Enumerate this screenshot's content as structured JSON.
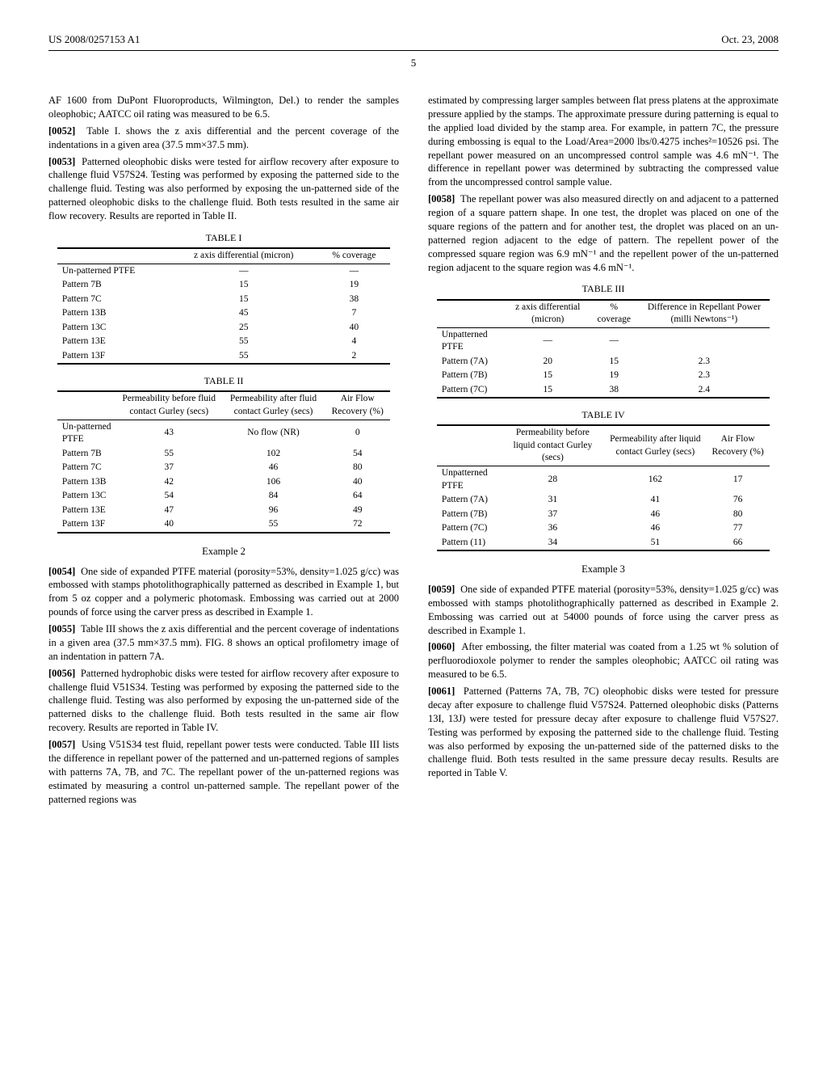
{
  "header": {
    "left": "US 2008/0257153 A1",
    "right": "Oct. 23, 2008"
  },
  "pagenum": "5",
  "p51_tail": "AF 1600 from DuPont Fluoroproducts, Wilmington, Del.) to render the samples oleophobic; AATCC oil rating was measured to be 6.5.",
  "p52": "Table I. shows the z axis differential and the percent coverage of the indentations in a given area (37.5 mm×37.5 mm).",
  "p53": "Patterned oleophobic disks were tested for airflow recovery after exposure to challenge fluid V57S24. Testing was performed by exposing the patterned side to the challenge fluid. Testing was also performed by exposing the un-patterned side of the patterned oleophobic disks to the challenge fluid. Both tests resulted in the same air flow recovery. Results are reported in Table II.",
  "t1": {
    "cap": "TABLE I",
    "cols": [
      "",
      "z axis differential (micron)",
      "% coverage"
    ],
    "rows": [
      [
        "Un-patterned PTFE",
        "—",
        "—"
      ],
      [
        "Pattern 7B",
        "15",
        "19"
      ],
      [
        "Pattern 7C",
        "15",
        "38"
      ],
      [
        "Pattern 13B",
        "45",
        "7"
      ],
      [
        "Pattern 13C",
        "25",
        "40"
      ],
      [
        "Pattern 13E",
        "55",
        "4"
      ],
      [
        "Pattern 13F",
        "55",
        "2"
      ]
    ]
  },
  "t2": {
    "cap": "TABLE II",
    "cols": [
      "",
      "Permeability before fluid contact Gurley (secs)",
      "Permeability after fluid contact Gurley (secs)",
      "Air Flow Recovery (%)"
    ],
    "rows": [
      [
        "Un-patterned PTFE",
        "43",
        "No flow (NR)",
        "0"
      ],
      [
        "Pattern 7B",
        "55",
        "102",
        "54"
      ],
      [
        "Pattern 7C",
        "37",
        "46",
        "80"
      ],
      [
        "Pattern 13B",
        "42",
        "106",
        "40"
      ],
      [
        "Pattern 13C",
        "54",
        "84",
        "64"
      ],
      [
        "Pattern 13E",
        "47",
        "96",
        "49"
      ],
      [
        "Pattern 13F",
        "40",
        "55",
        "72"
      ]
    ]
  },
  "ex2": "Example 2",
  "p54": "One side of expanded PTFE material (porosity=53%, density=1.025 g/cc) was embossed with stamps photolithographically patterned as described in Example 1, but from 5 oz copper and a polymeric photomask. Embossing was carried out at 2000 pounds of force using the carver press as described in Example 1.",
  "p55": "Table III shows the z axis differential and the percent coverage of indentations in a given area (37.5 mm×37.5 mm). FIG. 8 shows an optical profilometry image of an indentation in pattern 7A.",
  "p56": "Patterned hydrophobic disks were tested for airflow recovery after exposure to challenge fluid V51S34. Testing was performed by exposing the patterned side to the challenge fluid. Testing was also performed by exposing the un-patterned side of the patterned disks to the challenge fluid. Both tests resulted in the same air flow recovery. Results are reported in Table IV.",
  "p57a": "Using V51S34 test fluid, repellant power tests were conducted. Table III lists the difference in repellant power of the patterned and un-patterned regions of samples with patterns 7A, 7B, and 7C. The repellant power of the un-patterned regions was estimated by measuring a control un-patterned sample. The repellant power of the patterned regions was",
  "p57b": "estimated by compressing larger samples between flat press platens at the approximate pressure applied by the stamps. The approximate pressure during patterning is equal to the applied load divided by the stamp area. For example, in pattern 7C, the pressure during embossing is equal to the Load/Area=2000 lbs/0.4275 inches²=10526 psi. The repellant power measured on an uncompressed control sample was 4.6 mN⁻¹. The difference in repellant power was determined by subtracting the compressed value from the uncompressed control sample value.",
  "p58": "The repellant power was also measured directly on and adjacent to a patterned region of a square pattern shape. In one test, the droplet was placed on one of the square regions of the pattern and for another test, the droplet was placed on an un-patterned region adjacent to the edge of pattern. The repellent power of the compressed square region was 6.9 mN⁻¹ and the repellent power of the un-patterned region adjacent to the square region was 4.6 mN⁻¹.",
  "t3": {
    "cap": "TABLE III",
    "cols": [
      "",
      "z axis differential (micron)",
      "% coverage",
      "Difference in Repellant Power (milli Newtons⁻¹)"
    ],
    "rows": [
      [
        "Unpatterned PTFE",
        "—",
        "—",
        ""
      ],
      [
        "Pattern (7A)",
        "20",
        "15",
        "2.3"
      ],
      [
        "Pattern (7B)",
        "15",
        "19",
        "2.3"
      ],
      [
        "Pattern (7C)",
        "15",
        "38",
        "2.4"
      ]
    ]
  },
  "t4": {
    "cap": "TABLE IV",
    "cols": [
      "",
      "Permeability before liquid contact Gurley (secs)",
      "Permeability after liquid contact Gurley (secs)",
      "Air Flow Recovery (%)"
    ],
    "rows": [
      [
        "Unpatterned PTFE",
        "28",
        "162",
        "17"
      ],
      [
        "Pattern (7A)",
        "31",
        "41",
        "76"
      ],
      [
        "Pattern (7B)",
        "37",
        "46",
        "80"
      ],
      [
        "Pattern (7C)",
        "36",
        "46",
        "77"
      ],
      [
        "Pattern (11)",
        "34",
        "51",
        "66"
      ]
    ]
  },
  "ex3": "Example 3",
  "p59": "One side of expanded PTFE material (porosity=53%, density=1.025 g/cc) was embossed with stamps photolithographically patterned as described in Example 2. Embossing was carried out at 54000 pounds of force using the carver press as described in Example 1.",
  "p60": "After embossing, the filter material was coated from a 1.25 wt % solution of perfluorodioxole polymer to render the samples oleophobic; AATCC oil rating was measured to be 6.5.",
  "p61": "Patterned (Patterns 7A, 7B, 7C) oleophobic disks were tested for pressure decay after exposure to challenge fluid V57S24. Patterned oleophobic disks (Patterns 13I, 13J) were tested for pressure decay after exposure to challenge fluid V57S27. Testing was performed by exposing the patterned side to the challenge fluid. Testing was also performed by exposing the un-patterned side of the patterned disks to the challenge fluid. Both tests resulted in the same pressure decay results. Results are reported in Table V."
}
